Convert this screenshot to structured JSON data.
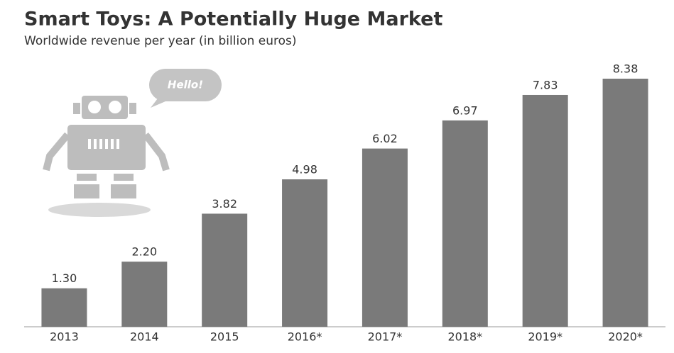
{
  "chart_data": {
    "type": "bar",
    "title": "Smart Toys: A Potentially Huge Market",
    "subtitle": "Worldwide revenue per year (in billion euros)",
    "annotation": "Hello!",
    "categories": [
      "2013",
      "2014",
      "2015",
      "2016*",
      "2017*",
      "2018*",
      "2019*",
      "2020*"
    ],
    "values": [
      1.3,
      2.2,
      3.82,
      4.98,
      6.02,
      6.97,
      7.83,
      8.38
    ],
    "value_labels": [
      "1.30",
      "2.20",
      "3.82",
      "4.98",
      "6.02",
      "6.97",
      "7.83",
      "8.38"
    ],
    "color": "#7a7a7a"
  }
}
